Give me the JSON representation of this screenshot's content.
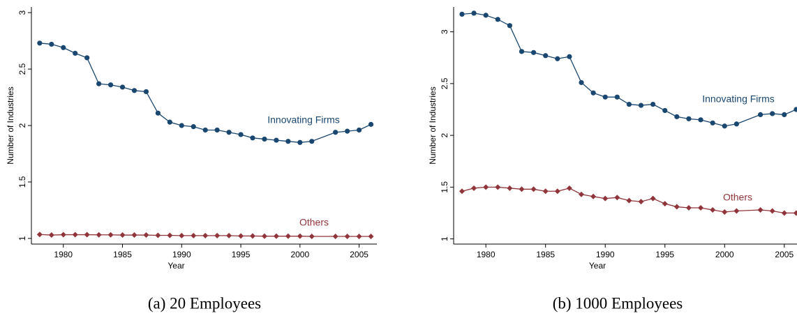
{
  "chart_data": [
    {
      "type": "line",
      "caption": "(a) 20 Employees",
      "xlabel": "Year",
      "ylabel": "Number of Industries",
      "x": [
        1978,
        1979,
        1980,
        1981,
        1982,
        1983,
        1984,
        1985,
        1986,
        1987,
        1988,
        1989,
        1990,
        1991,
        1992,
        1993,
        1994,
        1995,
        1996,
        1997,
        1998,
        1999,
        2000,
        2001,
        2003,
        2004,
        2005,
        2006
      ],
      "series": [
        {
          "name": "Innovating Firms",
          "color": "#1a476f",
          "marker": "circle",
          "values": [
            2.73,
            2.72,
            2.69,
            2.64,
            2.6,
            2.37,
            2.36,
            2.34,
            2.31,
            2.3,
            2.11,
            2.03,
            2.0,
            1.99,
            1.96,
            1.96,
            1.94,
            1.92,
            1.89,
            1.88,
            1.87,
            1.86,
            1.85,
            1.86,
            1.94,
            1.95,
            1.96,
            2.01
          ]
        },
        {
          "name": "Others",
          "color": "#90353b",
          "marker": "diamond",
          "values": [
            1.035,
            1.03,
            1.033,
            1.033,
            1.033,
            1.032,
            1.032,
            1.03,
            1.03,
            1.03,
            1.027,
            1.027,
            1.025,
            1.025,
            1.025,
            1.025,
            1.025,
            1.022,
            1.022,
            1.02,
            1.02,
            1.02,
            1.02,
            1.018,
            1.018,
            1.018,
            1.018,
            1.018
          ]
        }
      ],
      "xlim": [
        1977.3,
        2006.5
      ],
      "xticks": [
        1980,
        1985,
        1990,
        1995,
        2000,
        2005
      ],
      "ylim": [
        0.95,
        3.05
      ],
      "yticks": [
        1,
        1.5,
        2,
        2.5,
        3
      ]
    },
    {
      "type": "line",
      "caption": "(b) 1000 Employees",
      "xlabel": "Year",
      "ylabel": "Number of Industries",
      "x": [
        1978,
        1979,
        1980,
        1981,
        1982,
        1983,
        1984,
        1985,
        1986,
        1987,
        1988,
        1989,
        1990,
        1991,
        1992,
        1993,
        1994,
        1995,
        1996,
        1997,
        1998,
        1999,
        2000,
        2001,
        2003,
        2004,
        2005,
        2006
      ],
      "series": [
        {
          "name": "Innovating Firms",
          "color": "#1a476f",
          "marker": "circle",
          "values": [
            3.17,
            3.18,
            3.16,
            3.12,
            3.06,
            2.81,
            2.8,
            2.77,
            2.74,
            2.76,
            2.51,
            2.41,
            2.37,
            2.37,
            2.3,
            2.29,
            2.3,
            2.24,
            2.18,
            2.16,
            2.15,
            2.12,
            2.09,
            2.11,
            2.2,
            2.21,
            2.2,
            2.25
          ]
        },
        {
          "name": "Others",
          "color": "#90353b",
          "marker": "diamond",
          "values": [
            1.46,
            1.49,
            1.5,
            1.5,
            1.49,
            1.48,
            1.48,
            1.46,
            1.46,
            1.49,
            1.43,
            1.41,
            1.39,
            1.4,
            1.37,
            1.36,
            1.39,
            1.34,
            1.31,
            1.3,
            1.3,
            1.28,
            1.26,
            1.27,
            1.28,
            1.27,
            1.25,
            1.25
          ]
        }
      ],
      "xlim": [
        1977.3,
        2006.1
      ],
      "xticks": [
        1980,
        1985,
        1990,
        1995,
        2000,
        2005
      ],
      "ylim": [
        0.95,
        3.24
      ],
      "yticks": [
        1,
        1.5,
        2,
        2.5,
        3
      ]
    }
  ]
}
